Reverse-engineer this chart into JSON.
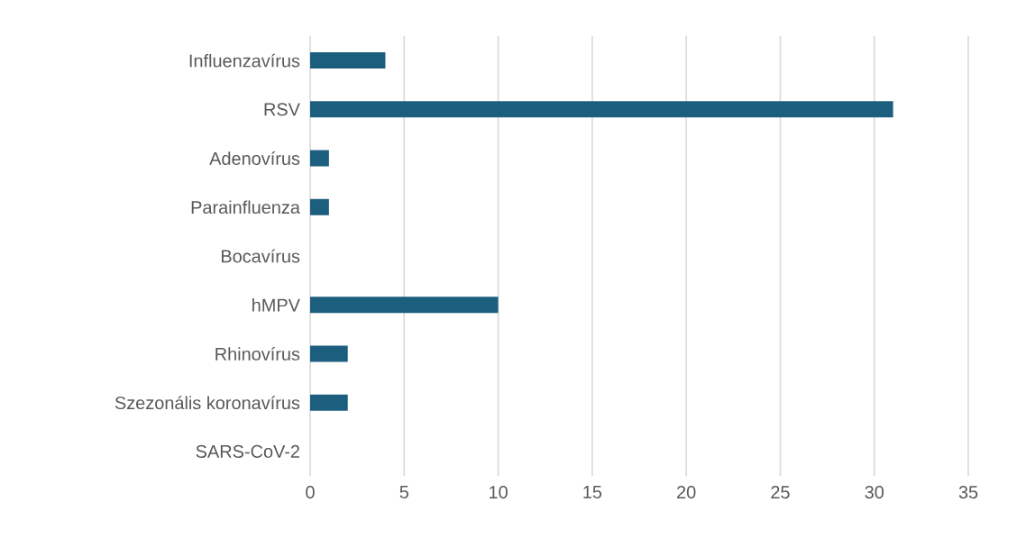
{
  "chart_data": {
    "type": "bar",
    "orientation": "horizontal",
    "categories": [
      "Influenzavírus",
      "RSV",
      "Adenovírus",
      "Parainfluenza",
      "Bocavírus",
      "hMPV",
      "Rhinovírus",
      "Szezonális koronavírus",
      "SARS-CoV-2"
    ],
    "values": [
      4,
      31,
      1,
      1,
      0,
      10,
      2,
      2,
      0
    ],
    "color": "#1b5e7e",
    "xlim": [
      0,
      35
    ],
    "xticks": [
      0,
      5,
      10,
      15,
      20,
      25,
      30,
      35
    ],
    "grid": "x"
  }
}
